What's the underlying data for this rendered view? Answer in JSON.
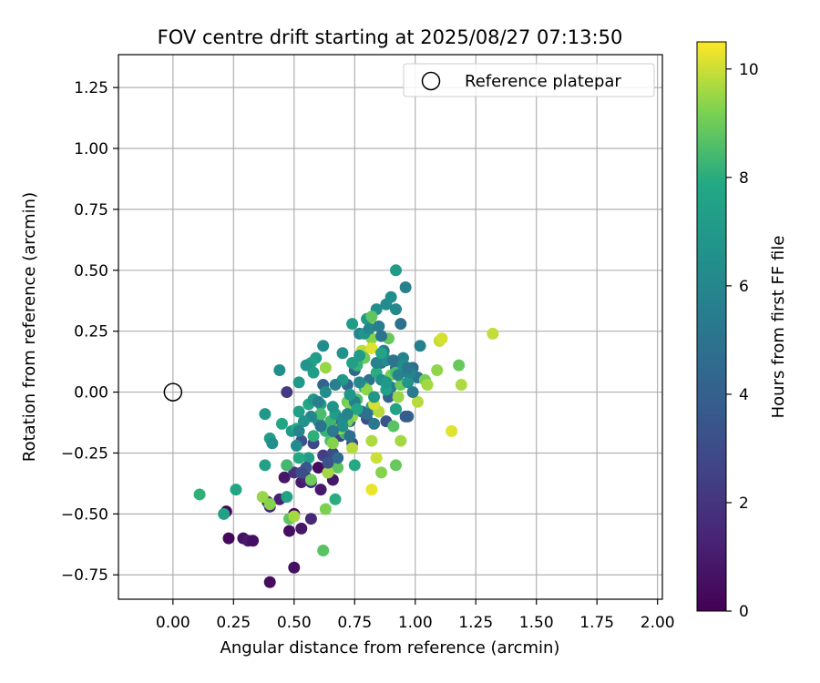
{
  "chart_data": {
    "type": "scatter",
    "title": "FOV centre drift starting at 2025/08/27 07:13:50",
    "xlabel": "Angular distance from reference (arcmin)",
    "ylabel": "Rotation from reference (arcmin)",
    "xlim": [
      -0.225,
      2.02
    ],
    "ylim": [
      -0.85,
      1.385
    ],
    "xticks": [
      0.0,
      0.25,
      0.5,
      0.75,
      1.0,
      1.25,
      1.5,
      1.75,
      2.0
    ],
    "xtick_labels": [
      "0.00",
      "0.25",
      "0.50",
      "0.75",
      "1.00",
      "1.25",
      "1.50",
      "1.75",
      "2.00"
    ],
    "yticks": [
      -0.75,
      -0.5,
      -0.25,
      0.0,
      0.25,
      0.5,
      0.75,
      1.0,
      1.25
    ],
    "ytick_labels": [
      "−0.75",
      "−0.50",
      "−0.25",
      "0.00",
      "0.25",
      "0.50",
      "0.75",
      "1.00",
      "1.25"
    ],
    "grid": true,
    "legend": {
      "position": "top-right",
      "label": "Reference platepar"
    },
    "reference_point": {
      "x": 0.0,
      "y": 0.0
    },
    "colorbar": {
      "label": "Hours from first FF file",
      "min": 0,
      "max": 10.5,
      "ticks": [
        0,
        2,
        4,
        6,
        8,
        10
      ],
      "tick_labels": [
        "0",
        "2",
        "4",
        "6",
        "8",
        "10"
      ],
      "colormap": "viridis"
    },
    "points": [
      [
        0.22,
        -0.49,
        0.2
      ],
      [
        0.23,
        -0.6,
        0.3
      ],
      [
        0.29,
        -0.6,
        0.6
      ],
      [
        0.31,
        -0.61,
        0.9
      ],
      [
        0.33,
        -0.61,
        0.5
      ],
      [
        0.4,
        -0.78,
        0.4
      ],
      [
        0.44,
        -0.44,
        1.2
      ],
      [
        0.46,
        -0.35,
        0.8
      ],
      [
        0.48,
        -0.57,
        0.5
      ],
      [
        0.5,
        -0.5,
        0.3
      ],
      [
        0.5,
        -0.72,
        0.6
      ],
      [
        0.53,
        -0.56,
        0.8
      ],
      [
        0.53,
        -0.37,
        1.0
      ],
      [
        0.57,
        -0.52,
        1.5
      ],
      [
        0.6,
        -0.31,
        0.4
      ],
      [
        0.61,
        -0.4,
        0.9
      ],
      [
        0.64,
        -0.33,
        1.3
      ],
      [
        0.66,
        -0.36,
        0.8
      ],
      [
        0.4,
        -0.47,
        1.4
      ],
      [
        0.39,
        -0.45,
        1.8
      ],
      [
        0.47,
        -0.3,
        2.1
      ],
      [
        0.5,
        -0.33,
        1.9
      ],
      [
        0.47,
        0.0,
        2.2
      ],
      [
        0.53,
        -0.2,
        3.2
      ],
      [
        0.55,
        -0.35,
        1.6
      ],
      [
        0.57,
        -0.37,
        1.9
      ],
      [
        0.58,
        -0.21,
        2.8
      ],
      [
        0.62,
        -0.26,
        2.4
      ],
      [
        0.66,
        -0.25,
        3.0
      ],
      [
        0.69,
        -0.18,
        2.6
      ],
      [
        0.74,
        -0.21,
        3.0
      ],
      [
        0.73,
        -0.12,
        3.6
      ],
      [
        0.8,
        -0.11,
        3.1
      ],
      [
        0.62,
        0.03,
        4.2
      ],
      [
        0.67,
        -0.12,
        3.8
      ],
      [
        0.72,
        0.03,
        4.5
      ],
      [
        0.75,
        0.09,
        4.4
      ],
      [
        0.78,
        -0.08,
        4.7
      ],
      [
        0.81,
        0.05,
        5.0
      ],
      [
        0.82,
        -0.07,
        4.9
      ],
      [
        0.86,
        0.12,
        5.2
      ],
      [
        0.88,
        -0.12,
        3.4
      ],
      [
        0.89,
        -0.02,
        4.2
      ],
      [
        0.9,
        0.02,
        5.5
      ],
      [
        0.92,
        0.1,
        4.8
      ],
      [
        0.92,
        -0.07,
        4.0
      ],
      [
        0.95,
        0.14,
        5.8
      ],
      [
        0.97,
        0.08,
        5.3
      ],
      [
        0.97,
        -0.1,
        4.4
      ],
      [
        0.99,
        0.1,
        4.6
      ],
      [
        1.01,
        0.06,
        5.1
      ],
      [
        1.02,
        0.19,
        5.7
      ],
      [
        0.94,
        0.28,
        4.9
      ],
      [
        0.96,
        0.43,
        5.6
      ],
      [
        0.92,
        0.34,
        6.1
      ],
      [
        0.9,
        0.39,
        6.4
      ],
      [
        0.92,
        0.5,
        7.1
      ],
      [
        0.84,
        0.34,
        6.5
      ],
      [
        0.8,
        0.3,
        7.0
      ],
      [
        0.77,
        0.24,
        6.0
      ],
      [
        0.74,
        0.28,
        7.2
      ],
      [
        0.7,
        0.16,
        6.6
      ],
      [
        0.62,
        0.19,
        6.3
      ],
      [
        0.59,
        0.14,
        7.2
      ],
      [
        0.57,
        0.12,
        7.5
      ],
      [
        0.58,
        0.08,
        7.3
      ],
      [
        0.55,
        0.11,
        6.8
      ],
      [
        0.52,
        0.04,
        7.0
      ],
      [
        0.44,
        0.09,
        6.4
      ],
      [
        0.38,
        -0.09,
        7.0
      ],
      [
        0.4,
        -0.19,
        7.2
      ],
      [
        0.41,
        -0.21,
        6.5
      ],
      [
        0.38,
        -0.3,
        7.5
      ],
      [
        0.45,
        -0.13,
        7.7
      ],
      [
        0.49,
        -0.16,
        7.1
      ],
      [
        0.51,
        -0.15,
        7.9
      ],
      [
        0.52,
        -0.08,
        7.4
      ],
      [
        0.56,
        -0.05,
        7.8
      ],
      [
        0.58,
        -0.03,
        6.9
      ],
      [
        0.6,
        -0.12,
        6.6
      ],
      [
        0.61,
        -0.05,
        7.6
      ],
      [
        0.63,
        -0.16,
        8.2
      ],
      [
        0.56,
        -0.27,
        7.3
      ],
      [
        0.52,
        -0.27,
        7.9
      ],
      [
        0.47,
        -0.3,
        8.4
      ],
      [
        0.48,
        -0.52,
        8.8
      ],
      [
        0.47,
        -0.43,
        7.6
      ],
      [
        0.57,
        -0.36,
        9.0
      ],
      [
        0.58,
        -0.18,
        8.1
      ],
      [
        0.65,
        -0.2,
        8.5
      ],
      [
        0.67,
        -0.44,
        8.0
      ],
      [
        0.62,
        -0.65,
        8.7
      ],
      [
        0.63,
        -0.48,
        9.2
      ],
      [
        0.75,
        -0.3,
        7.9
      ],
      [
        0.71,
        -0.17,
        8.3
      ],
      [
        0.72,
        -0.04,
        9.0
      ],
      [
        0.74,
        -0.1,
        9.4
      ],
      [
        0.73,
        -0.05,
        9.2
      ],
      [
        0.76,
        -0.03,
        8.6
      ],
      [
        0.79,
        0.02,
        8.1
      ],
      [
        0.82,
        -0.06,
        7.5
      ],
      [
        0.84,
        0.08,
        8.0
      ],
      [
        0.87,
        0.15,
        8.4
      ],
      [
        0.89,
        0.22,
        8.9
      ],
      [
        0.9,
        0.07,
        9.1
      ],
      [
        0.92,
        0.08,
        8.5
      ],
      [
        0.94,
        0.03,
        9.0
      ],
      [
        0.93,
        -0.02,
        9.5
      ],
      [
        0.91,
        -0.14,
        8.7
      ],
      [
        0.94,
        -0.2,
        9.6
      ],
      [
        0.92,
        -0.3,
        8.9
      ],
      [
        0.86,
        -0.33,
        9.3
      ],
      [
        0.84,
        -0.27,
        10.0
      ],
      [
        0.82,
        -0.4,
        10.3
      ],
      [
        0.85,
        -0.08,
        9.8
      ],
      [
        0.83,
        -0.05,
        10.1
      ],
      [
        0.82,
        -0.2,
        9.7
      ],
      [
        0.8,
        0.01,
        9.4
      ],
      [
        0.78,
        0.17,
        9.8
      ],
      [
        0.82,
        0.22,
        9.3
      ],
      [
        0.83,
        0.27,
        9.6
      ],
      [
        0.82,
        0.31,
        8.8
      ],
      [
        0.79,
        0.14,
        9.0
      ],
      [
        0.82,
        0.18,
        10.2
      ],
      [
        0.76,
        0.11,
        8.2
      ],
      [
        1.01,
        -0.04,
        9.8
      ],
      [
        1.04,
        0.05,
        9.1
      ],
      [
        1.05,
        0.03,
        9.6
      ],
      [
        1.09,
        0.09,
        9.4
      ],
      [
        1.1,
        0.21,
        9.9
      ],
      [
        1.11,
        0.22,
        10.1
      ],
      [
        1.15,
        -0.16,
        10.2
      ],
      [
        1.18,
        0.11,
        8.9
      ],
      [
        1.19,
        0.03,
        9.7
      ],
      [
        1.32,
        0.24,
        9.9
      ],
      [
        0.11,
        -0.42,
        8.1
      ],
      [
        0.21,
        -0.5,
        7.5
      ],
      [
        0.26,
        -0.4,
        7.7
      ],
      [
        0.37,
        -0.43,
        9.5
      ],
      [
        0.4,
        -0.46,
        9.3
      ],
      [
        0.5,
        -0.51,
        9.6
      ],
      [
        0.68,
        -0.31,
        8.8
      ],
      [
        0.72,
        -0.12,
        9.1
      ],
      [
        0.74,
        -0.23,
        9.8
      ],
      [
        0.66,
        -0.21,
        9.3
      ],
      [
        0.69,
        -0.15,
        9.4
      ],
      [
        0.64,
        -0.33,
        9.6
      ],
      [
        0.63,
        0.1,
        9.5
      ],
      [
        0.61,
        -0.09,
        8.5
      ],
      [
        0.65,
        -0.12,
        8.3
      ],
      [
        0.88,
        0.01,
        7.4
      ],
      [
        0.92,
        -0.07,
        7.6
      ],
      [
        0.97,
        0.04,
        6.8
      ],
      [
        0.98,
        0.08,
        5.9
      ],
      [
        0.86,
        0.05,
        6.5
      ],
      [
        0.87,
        0.17,
        5.4
      ],
      [
        0.88,
        0.13,
        6.2
      ],
      [
        0.84,
        0.12,
        5.8
      ],
      [
        0.83,
        -0.13,
        5.2
      ],
      [
        0.8,
        -0.09,
        4.9
      ],
      [
        0.77,
        0.04,
        6.1
      ],
      [
        0.75,
        -0.04,
        5.7
      ],
      [
        0.73,
        -0.01,
        6.9
      ],
      [
        0.67,
        -0.09,
        7.3
      ],
      [
        0.66,
        -0.06,
        6.7
      ],
      [
        0.63,
        0.0,
        6.4
      ],
      [
        0.6,
        -0.04,
        5.6
      ],
      [
        0.57,
        -0.1,
        6.0
      ],
      [
        0.54,
        -0.12,
        6.7
      ],
      [
        0.52,
        -0.16,
        5.9
      ],
      [
        0.51,
        -0.22,
        6.2
      ],
      [
        0.7,
        0.05,
        7.0
      ],
      [
        0.74,
        0.12,
        7.4
      ],
      [
        0.77,
        0.15,
        7.1
      ],
      [
        0.79,
        0.24,
        6.8
      ],
      [
        0.81,
        0.26,
        6.0
      ],
      [
        0.85,
        0.27,
        5.5
      ],
      [
        0.86,
        0.16,
        7.6
      ],
      [
        0.88,
        0.04,
        7.0
      ],
      [
        0.86,
        0.23,
        5.0
      ],
      [
        0.88,
        0.36,
        6.3
      ],
      [
        0.91,
        0.13,
        5.0
      ],
      [
        0.93,
        0.07,
        5.9
      ],
      [
        0.95,
        0.11,
        6.4
      ],
      [
        0.97,
        0.1,
        5.2
      ],
      [
        0.99,
        0.0,
        5.4
      ],
      [
        0.83,
        -0.02,
        6.9
      ],
      [
        0.76,
        -0.07,
        7.7
      ],
      [
        0.7,
        -0.11,
        6.2
      ],
      [
        0.67,
        0.03,
        5.6
      ],
      [
        0.72,
        -0.09,
        5.9
      ],
      [
        0.7,
        -0.14,
        6.4
      ],
      [
        0.61,
        -0.14,
        5.0
      ],
      [
        0.66,
        -0.16,
        5.3
      ],
      [
        0.73,
        -0.18,
        4.8
      ],
      [
        0.68,
        -0.27,
        4.5
      ],
      [
        0.64,
        -0.29,
        3.4
      ],
      [
        0.55,
        -0.31,
        3.6
      ],
      [
        0.53,
        -0.33,
        3.0
      ],
      [
        0.96,
        -0.1,
        3.8
      ]
    ]
  }
}
